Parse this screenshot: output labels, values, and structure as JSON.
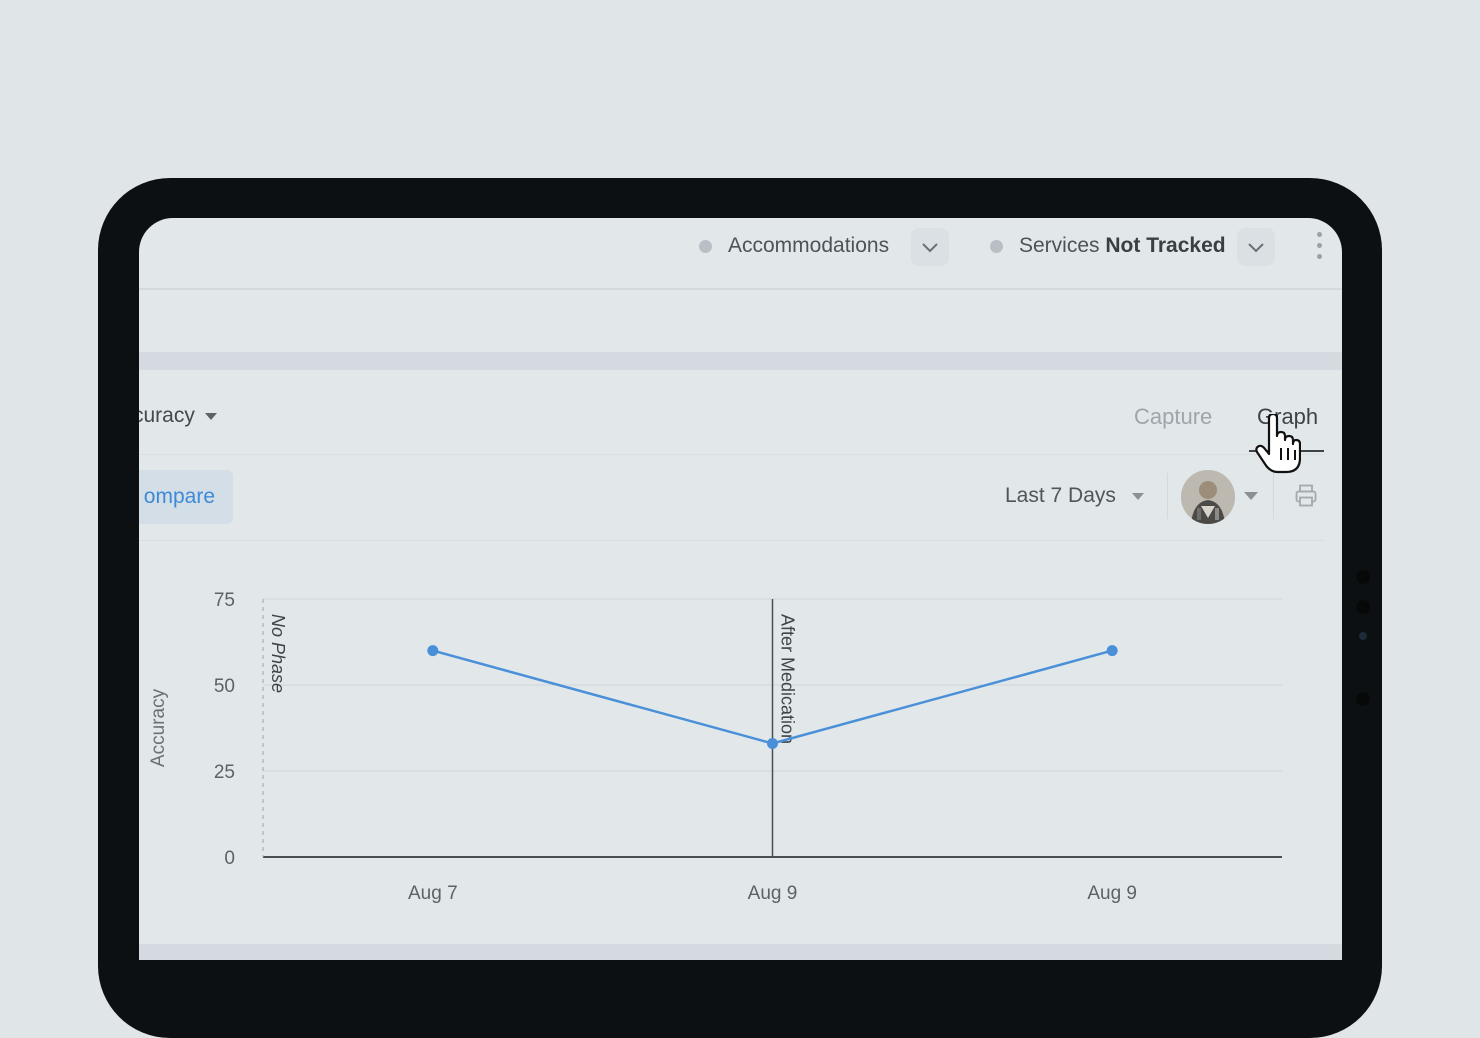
{
  "topbar": {
    "accommodations_label": "Accommodations",
    "services_label": "Services",
    "services_status": "Not Tracked"
  },
  "card": {
    "metric_label": "curacy",
    "tabs": [
      {
        "label": "Capture",
        "active": false
      },
      {
        "label": "Graph",
        "active": true
      }
    ],
    "compare_label": "ompare",
    "date_range": "Last 7 Days"
  },
  "colors": {
    "accent": "#3d8ad6",
    "series": "#4a90d9",
    "background": "#e2e7ea"
  },
  "icons": [
    "chevron-down-icon",
    "more-vertical-icon",
    "print-icon",
    "hand-pointer-cursor-icon"
  ],
  "chart_data": {
    "type": "line",
    "ylabel": "Accuracy",
    "ylim": [
      0,
      75
    ],
    "yticks": [
      "75",
      "50",
      "25",
      "0"
    ],
    "x": [
      "Aug 7",
      "Aug 9",
      "Aug 9"
    ],
    "series": [
      {
        "values": [
          60,
          33,
          60
        ]
      }
    ],
    "phases": [
      {
        "label": "No Phase",
        "start_index": 0,
        "style": "dashed"
      },
      {
        "label": "After Medication",
        "position": 1.5,
        "style": "solid"
      }
    ],
    "grid": true
  }
}
